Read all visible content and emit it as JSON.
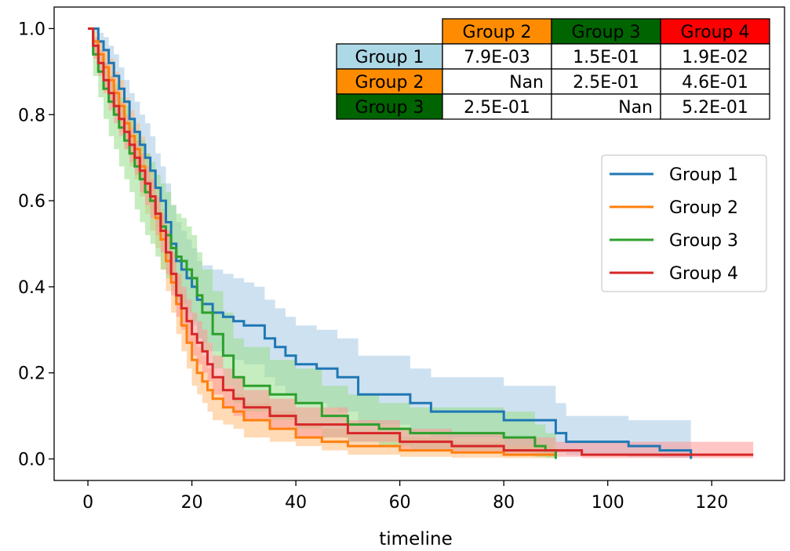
{
  "chart_data": {
    "type": "line",
    "subtype": "kaplan-meier survival curves with confidence bands",
    "title": "",
    "xlabel": "timeline",
    "ylabel": "",
    "xlim": [
      -6.5,
      134
    ],
    "ylim": [
      -0.05,
      1.05
    ],
    "xticks": [
      0,
      20,
      40,
      60,
      80,
      100,
      120
    ],
    "yticks": [
      0.0,
      0.2,
      0.4,
      0.6,
      0.8,
      1.0
    ],
    "xtick_labels": [
      "0",
      "20",
      "40",
      "60",
      "80",
      "100",
      "120"
    ],
    "ytick_labels": [
      "0.0",
      "0.2",
      "0.4",
      "0.6",
      "0.8",
      "1.0"
    ],
    "legend_position": "center-right",
    "series": [
      {
        "name": "Group 1",
        "color": "#1f77b4",
        "band_color": "#a6c8e4",
        "x": [
          0,
          1,
          2,
          3,
          4,
          5,
          6,
          7,
          8,
          9,
          10,
          11,
          12,
          13,
          14,
          15,
          16,
          17,
          18,
          19,
          20,
          21,
          22,
          24,
          26,
          28,
          30,
          32,
          34,
          36,
          38,
          40,
          42,
          44,
          46,
          48,
          52,
          56,
          60,
          62,
          66,
          70,
          80,
          90,
          92,
          96,
          104,
          110,
          116
        ],
        "y": [
          1.0,
          1.0,
          0.97,
          0.95,
          0.92,
          0.89,
          0.86,
          0.83,
          0.79,
          0.76,
          0.73,
          0.7,
          0.67,
          0.63,
          0.6,
          0.55,
          0.5,
          0.46,
          0.44,
          0.42,
          0.4,
          0.37,
          0.36,
          0.34,
          0.33,
          0.32,
          0.31,
          0.31,
          0.28,
          0.26,
          0.24,
          0.22,
          0.22,
          0.21,
          0.21,
          0.19,
          0.15,
          0.15,
          0.15,
          0.13,
          0.11,
          0.11,
          0.09,
          0.06,
          0.04,
          0.04,
          0.03,
          0.02,
          0.0
        ],
        "lo": [
          1.0,
          0.99,
          0.95,
          0.91,
          0.87,
          0.83,
          0.79,
          0.75,
          0.71,
          0.67,
          0.64,
          0.61,
          0.58,
          0.54,
          0.51,
          0.46,
          0.42,
          0.37,
          0.35,
          0.33,
          0.31,
          0.28,
          0.27,
          0.25,
          0.24,
          0.23,
          0.22,
          0.22,
          0.19,
          0.17,
          0.15,
          0.13,
          0.13,
          0.13,
          0.12,
          0.11,
          0.08,
          0.08,
          0.08,
          0.06,
          0.05,
          0.05,
          0.03,
          0.015,
          0.01,
          0.01,
          0.005,
          0.003,
          0.003
        ],
        "hi": [
          1.0,
          1.0,
          0.99,
          0.98,
          0.96,
          0.94,
          0.91,
          0.88,
          0.85,
          0.83,
          0.8,
          0.78,
          0.75,
          0.71,
          0.68,
          0.64,
          0.59,
          0.55,
          0.53,
          0.51,
          0.49,
          0.46,
          0.45,
          0.44,
          0.43,
          0.42,
          0.41,
          0.4,
          0.37,
          0.35,
          0.33,
          0.31,
          0.31,
          0.3,
          0.3,
          0.28,
          0.24,
          0.24,
          0.24,
          0.21,
          0.19,
          0.19,
          0.17,
          0.13,
          0.1,
          0.1,
          0.09,
          0.09,
          0.09
        ]
      },
      {
        "name": "Group 2",
        "color": "#ff7f0e",
        "band_color": "#ffbb78",
        "x": [
          0,
          1,
          2,
          3,
          4,
          5,
          6,
          7,
          8,
          9,
          10,
          11,
          12,
          13,
          14,
          15,
          16,
          17,
          18,
          19,
          20,
          21,
          22,
          23,
          24,
          26,
          28,
          30,
          35,
          40,
          45,
          50,
          60,
          70,
          80,
          90
        ],
        "y": [
          1.0,
          0.97,
          0.94,
          0.91,
          0.88,
          0.85,
          0.82,
          0.78,
          0.75,
          0.72,
          0.68,
          0.64,
          0.6,
          0.56,
          0.51,
          0.46,
          0.41,
          0.36,
          0.31,
          0.27,
          0.23,
          0.2,
          0.18,
          0.16,
          0.14,
          0.12,
          0.11,
          0.09,
          0.07,
          0.05,
          0.04,
          0.03,
          0.02,
          0.015,
          0.01,
          0.01
        ],
        "lo": [
          1.0,
          0.94,
          0.9,
          0.86,
          0.83,
          0.8,
          0.76,
          0.72,
          0.68,
          0.65,
          0.61,
          0.57,
          0.53,
          0.49,
          0.44,
          0.39,
          0.34,
          0.29,
          0.25,
          0.21,
          0.17,
          0.15,
          0.13,
          0.11,
          0.09,
          0.08,
          0.07,
          0.05,
          0.04,
          0.03,
          0.02,
          0.01,
          0.005,
          0.003,
          0.002,
          0.002
        ],
        "hi": [
          1.0,
          0.99,
          0.97,
          0.95,
          0.93,
          0.9,
          0.88,
          0.84,
          0.81,
          0.78,
          0.75,
          0.71,
          0.67,
          0.63,
          0.58,
          0.53,
          0.48,
          0.43,
          0.38,
          0.33,
          0.29,
          0.26,
          0.24,
          0.21,
          0.19,
          0.17,
          0.15,
          0.13,
          0.11,
          0.08,
          0.07,
          0.06,
          0.05,
          0.04,
          0.03,
          0.03
        ]
      },
      {
        "name": "Group 3",
        "color": "#2ca02c",
        "band_color": "#98df8a",
        "x": [
          0,
          1,
          2,
          3,
          4,
          5,
          6,
          7,
          8,
          9,
          10,
          11,
          12,
          13,
          14,
          15,
          16,
          17,
          18,
          19,
          20,
          21,
          22,
          24,
          26,
          28,
          30,
          35,
          40,
          45,
          50,
          56,
          62,
          70,
          80,
          86,
          88,
          90
        ],
        "y": [
          1.0,
          0.94,
          0.9,
          0.86,
          0.83,
          0.8,
          0.77,
          0.74,
          0.71,
          0.68,
          0.65,
          0.62,
          0.6,
          0.57,
          0.54,
          0.52,
          0.49,
          0.47,
          0.46,
          0.44,
          0.42,
          0.38,
          0.34,
          0.29,
          0.24,
          0.19,
          0.17,
          0.15,
          0.13,
          0.1,
          0.08,
          0.07,
          0.06,
          0.06,
          0.05,
          0.03,
          0.02,
          0.0
        ],
        "lo": [
          1.0,
          0.89,
          0.84,
          0.79,
          0.75,
          0.72,
          0.68,
          0.65,
          0.62,
          0.58,
          0.55,
          0.52,
          0.5,
          0.47,
          0.44,
          0.42,
          0.39,
          0.37,
          0.36,
          0.34,
          0.32,
          0.28,
          0.25,
          0.21,
          0.17,
          0.13,
          0.11,
          0.09,
          0.07,
          0.05,
          0.04,
          0.03,
          0.02,
          0.02,
          0.015,
          0.005,
          0.003,
          0.003
        ],
        "hi": [
          1.0,
          0.97,
          0.95,
          0.92,
          0.89,
          0.87,
          0.84,
          0.82,
          0.79,
          0.76,
          0.74,
          0.71,
          0.69,
          0.66,
          0.64,
          0.62,
          0.59,
          0.57,
          0.56,
          0.54,
          0.52,
          0.48,
          0.44,
          0.39,
          0.34,
          0.28,
          0.26,
          0.23,
          0.21,
          0.17,
          0.15,
          0.13,
          0.12,
          0.12,
          0.11,
          0.08,
          0.06,
          0.06
        ]
      },
      {
        "name": "Group 4",
        "color": "#d62728",
        "band_color": "#ff9896",
        "x": [
          0,
          1,
          2,
          3,
          4,
          5,
          6,
          7,
          8,
          9,
          10,
          11,
          12,
          13,
          14,
          15,
          16,
          17,
          18,
          19,
          20,
          21,
          22,
          23,
          24,
          26,
          28,
          30,
          35,
          40,
          50,
          60,
          70,
          80,
          90,
          95,
          100,
          110,
          120,
          128
        ],
        "y": [
          1.0,
          0.96,
          0.92,
          0.88,
          0.85,
          0.82,
          0.79,
          0.76,
          0.73,
          0.7,
          0.67,
          0.64,
          0.61,
          0.57,
          0.53,
          0.48,
          0.43,
          0.38,
          0.35,
          0.32,
          0.29,
          0.27,
          0.25,
          0.22,
          0.19,
          0.16,
          0.14,
          0.12,
          0.1,
          0.08,
          0.06,
          0.04,
          0.03,
          0.02,
          0.02,
          0.01,
          0.01,
          0.01,
          0.01,
          0.01
        ],
        "lo": [
          1.0,
          0.93,
          0.89,
          0.85,
          0.81,
          0.78,
          0.75,
          0.72,
          0.69,
          0.66,
          0.62,
          0.59,
          0.56,
          0.52,
          0.48,
          0.43,
          0.38,
          0.33,
          0.3,
          0.27,
          0.24,
          0.22,
          0.2,
          0.18,
          0.15,
          0.12,
          0.1,
          0.09,
          0.07,
          0.05,
          0.04,
          0.02,
          0.015,
          0.01,
          0.005,
          0.002,
          0.002,
          0.002,
          0.002,
          0.002
        ],
        "hi": [
          1.0,
          0.98,
          0.95,
          0.92,
          0.89,
          0.86,
          0.83,
          0.8,
          0.77,
          0.74,
          0.71,
          0.68,
          0.65,
          0.61,
          0.57,
          0.53,
          0.48,
          0.43,
          0.4,
          0.37,
          0.34,
          0.32,
          0.3,
          0.27,
          0.24,
          0.21,
          0.19,
          0.16,
          0.14,
          0.12,
          0.09,
          0.07,
          0.06,
          0.05,
          0.04,
          0.04,
          0.04,
          0.04,
          0.04,
          0.04
        ]
      }
    ],
    "pvalue_table": {
      "col_headers": [
        {
          "label": "Group 2",
          "color": "#ff8c00"
        },
        {
          "label": "Group 3",
          "color": "#006400"
        },
        {
          "label": "Group 4",
          "color": "#ff0000"
        }
      ],
      "rows": [
        {
          "label": "Group 1",
          "color": "#add8e6",
          "cells": [
            "7.9E-03",
            "1.5E-01",
            "1.9E-02"
          ]
        },
        {
          "label": "Group 2",
          "color": "#ff8c00",
          "cells": [
            "Nan",
            "2.5E-01",
            "4.6E-01"
          ]
        },
        {
          "label": "Group 3",
          "color": "#006400",
          "cells": [
            "2.5E-01",
            "Nan",
            "5.2E-01"
          ]
        }
      ]
    }
  }
}
